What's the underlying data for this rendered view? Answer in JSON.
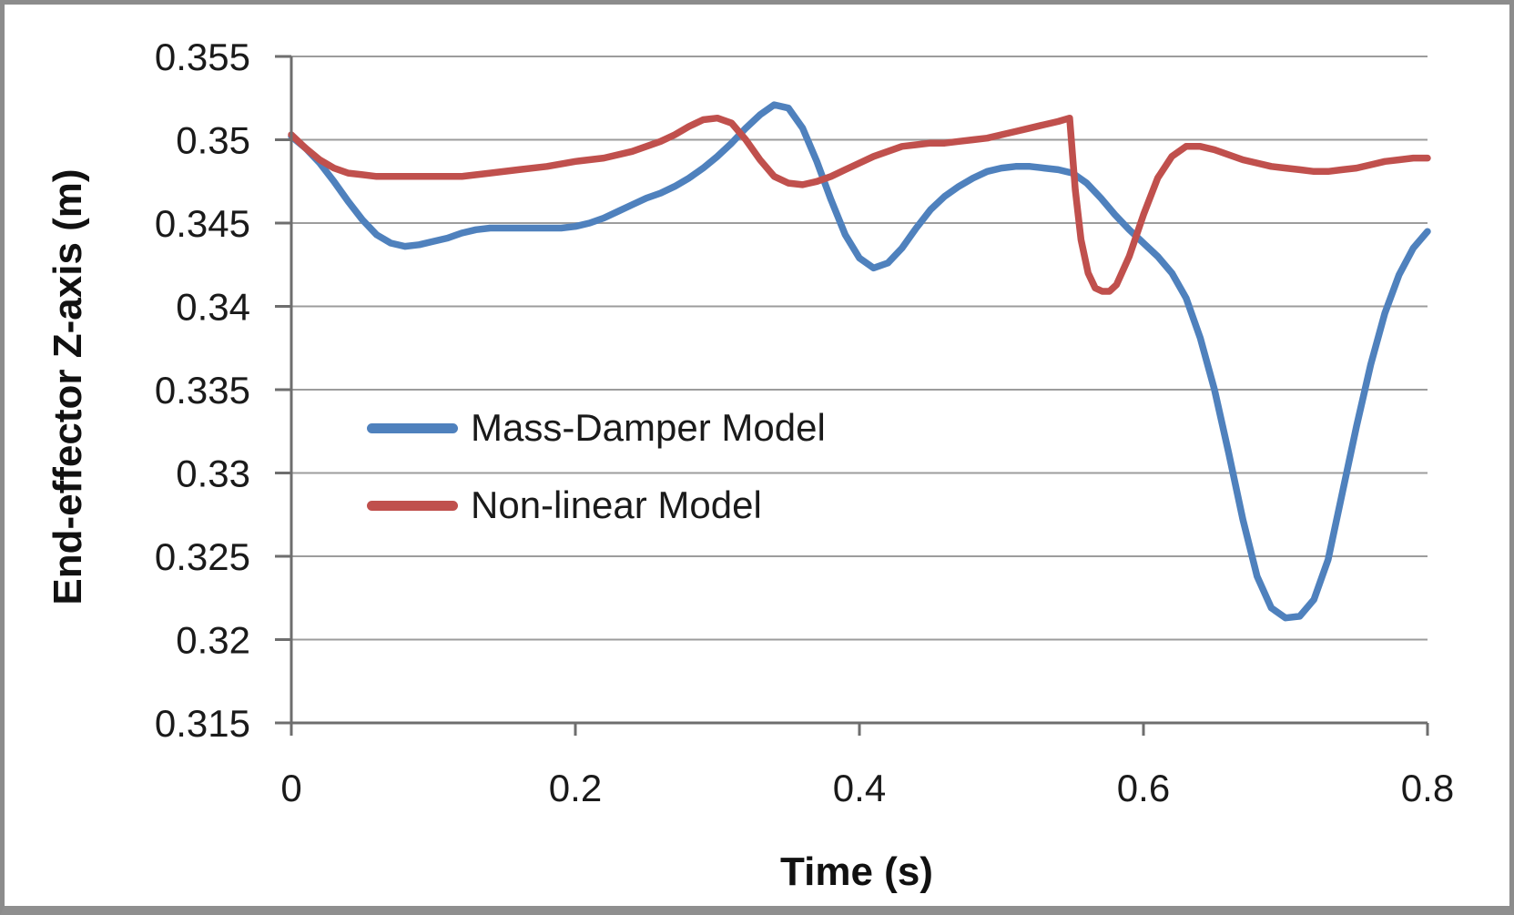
{
  "figure": {
    "background": "#ffffff",
    "border_color": "#8c8c8c"
  },
  "chart_data": {
    "type": "line",
    "title": "",
    "xlabel": "Time (s)",
    "ylabel": "End-effector Z-axis (m)",
    "xlim": [
      0,
      0.8
    ],
    "ylim": [
      0.315,
      0.355
    ],
    "grid": "horizontal",
    "legend_position": "inside-left-middle",
    "colors": {
      "gridline": "#9c9c9c",
      "axis": "#6e6e6e",
      "tick": "#6e6e6e",
      "text": "#1a1a1a"
    },
    "x_ticks": [
      {
        "value": 0,
        "label": "0"
      },
      {
        "value": 0.2,
        "label": "0.2"
      },
      {
        "value": 0.4,
        "label": "0.4"
      },
      {
        "value": 0.6,
        "label": "0.6"
      },
      {
        "value": 0.8,
        "label": "0.8"
      }
    ],
    "y_ticks": [
      {
        "value": 0.355,
        "label": "0.355"
      },
      {
        "value": 0.35,
        "label": "0.35"
      },
      {
        "value": 0.345,
        "label": "0.345"
      },
      {
        "value": 0.34,
        "label": "0.34"
      },
      {
        "value": 0.335,
        "label": "0.335"
      },
      {
        "value": 0.33,
        "label": "0.33"
      },
      {
        "value": 0.325,
        "label": "0.325"
      },
      {
        "value": 0.32,
        "label": "0.32"
      },
      {
        "value": 0.315,
        "label": "0.315"
      }
    ],
    "series": [
      {
        "name": "Mass-Damper Model",
        "color": "#4f81bd",
        "points": [
          [
            0.0,
            0.3502
          ],
          [
            0.01,
            0.3495
          ],
          [
            0.02,
            0.3486
          ],
          [
            0.03,
            0.3475
          ],
          [
            0.04,
            0.3463
          ],
          [
            0.05,
            0.3452
          ],
          [
            0.06,
            0.3443
          ],
          [
            0.07,
            0.3438
          ],
          [
            0.08,
            0.3436
          ],
          [
            0.09,
            0.3437
          ],
          [
            0.1,
            0.3439
          ],
          [
            0.11,
            0.3441
          ],
          [
            0.12,
            0.3444
          ],
          [
            0.13,
            0.3446
          ],
          [
            0.14,
            0.3447
          ],
          [
            0.15,
            0.3447
          ],
          [
            0.16,
            0.3447
          ],
          [
            0.17,
            0.3447
          ],
          [
            0.18,
            0.3447
          ],
          [
            0.19,
            0.3447
          ],
          [
            0.2,
            0.3448
          ],
          [
            0.21,
            0.345
          ],
          [
            0.22,
            0.3453
          ],
          [
            0.23,
            0.3457
          ],
          [
            0.24,
            0.3461
          ],
          [
            0.25,
            0.3465
          ],
          [
            0.26,
            0.3468
          ],
          [
            0.27,
            0.3472
          ],
          [
            0.28,
            0.3477
          ],
          [
            0.29,
            0.3483
          ],
          [
            0.3,
            0.349
          ],
          [
            0.31,
            0.3498
          ],
          [
            0.32,
            0.3507
          ],
          [
            0.33,
            0.3515
          ],
          [
            0.34,
            0.3521
          ],
          [
            0.35,
            0.3519
          ],
          [
            0.36,
            0.3507
          ],
          [
            0.37,
            0.3487
          ],
          [
            0.38,
            0.3464
          ],
          [
            0.39,
            0.3443
          ],
          [
            0.4,
            0.3429
          ],
          [
            0.41,
            0.3423
          ],
          [
            0.42,
            0.3426
          ],
          [
            0.43,
            0.3435
          ],
          [
            0.44,
            0.3447
          ],
          [
            0.45,
            0.3458
          ],
          [
            0.46,
            0.3466
          ],
          [
            0.47,
            0.3472
          ],
          [
            0.48,
            0.3477
          ],
          [
            0.49,
            0.3481
          ],
          [
            0.5,
            0.3483
          ],
          [
            0.51,
            0.3484
          ],
          [
            0.52,
            0.3484
          ],
          [
            0.53,
            0.3483
          ],
          [
            0.54,
            0.3482
          ],
          [
            0.55,
            0.348
          ],
          [
            0.56,
            0.3474
          ],
          [
            0.57,
            0.3465
          ],
          [
            0.58,
            0.3455
          ],
          [
            0.59,
            0.3446
          ],
          [
            0.6,
            0.3438
          ],
          [
            0.61,
            0.343
          ],
          [
            0.62,
            0.342
          ],
          [
            0.63,
            0.3405
          ],
          [
            0.64,
            0.3381
          ],
          [
            0.65,
            0.335
          ],
          [
            0.66,
            0.3312
          ],
          [
            0.67,
            0.3272
          ],
          [
            0.68,
            0.3238
          ],
          [
            0.69,
            0.3219
          ],
          [
            0.7,
            0.3213
          ],
          [
            0.71,
            0.3214
          ],
          [
            0.72,
            0.3224
          ],
          [
            0.73,
            0.3248
          ],
          [
            0.74,
            0.3288
          ],
          [
            0.75,
            0.3328
          ],
          [
            0.76,
            0.3365
          ],
          [
            0.77,
            0.3396
          ],
          [
            0.78,
            0.3419
          ],
          [
            0.79,
            0.3435
          ],
          [
            0.8,
            0.3445
          ]
        ]
      },
      {
        "name": "Non-linear Model",
        "color": "#c0504d",
        "points": [
          [
            0.0,
            0.3503
          ],
          [
            0.01,
            0.3495
          ],
          [
            0.02,
            0.3488
          ],
          [
            0.03,
            0.3483
          ],
          [
            0.04,
            0.348
          ],
          [
            0.05,
            0.3479
          ],
          [
            0.06,
            0.3478
          ],
          [
            0.08,
            0.3478
          ],
          [
            0.1,
            0.3478
          ],
          [
            0.12,
            0.3478
          ],
          [
            0.14,
            0.348
          ],
          [
            0.16,
            0.3482
          ],
          [
            0.18,
            0.3484
          ],
          [
            0.2,
            0.3487
          ],
          [
            0.22,
            0.3489
          ],
          [
            0.24,
            0.3493
          ],
          [
            0.26,
            0.3499
          ],
          [
            0.27,
            0.3503
          ],
          [
            0.28,
            0.3508
          ],
          [
            0.29,
            0.3512
          ],
          [
            0.3,
            0.3513
          ],
          [
            0.31,
            0.351
          ],
          [
            0.32,
            0.35
          ],
          [
            0.33,
            0.3488
          ],
          [
            0.34,
            0.3478
          ],
          [
            0.35,
            0.3474
          ],
          [
            0.36,
            0.3473
          ],
          [
            0.37,
            0.3475
          ],
          [
            0.38,
            0.3478
          ],
          [
            0.39,
            0.3482
          ],
          [
            0.4,
            0.3486
          ],
          [
            0.41,
            0.349
          ],
          [
            0.42,
            0.3493
          ],
          [
            0.43,
            0.3496
          ],
          [
            0.44,
            0.3497
          ],
          [
            0.45,
            0.3498
          ],
          [
            0.46,
            0.3498
          ],
          [
            0.47,
            0.3499
          ],
          [
            0.48,
            0.35
          ],
          [
            0.49,
            0.3501
          ],
          [
            0.5,
            0.3503
          ],
          [
            0.51,
            0.3505
          ],
          [
            0.52,
            0.3507
          ],
          [
            0.53,
            0.3509
          ],
          [
            0.54,
            0.3511
          ],
          [
            0.548,
            0.3513
          ],
          [
            0.552,
            0.347
          ],
          [
            0.556,
            0.344
          ],
          [
            0.561,
            0.342
          ],
          [
            0.566,
            0.3411
          ],
          [
            0.571,
            0.3409
          ],
          [
            0.576,
            0.3409
          ],
          [
            0.581,
            0.3413
          ],
          [
            0.59,
            0.343
          ],
          [
            0.6,
            0.3455
          ],
          [
            0.61,
            0.3477
          ],
          [
            0.62,
            0.349
          ],
          [
            0.63,
            0.3496
          ],
          [
            0.64,
            0.3496
          ],
          [
            0.65,
            0.3494
          ],
          [
            0.66,
            0.3491
          ],
          [
            0.67,
            0.3488
          ],
          [
            0.68,
            0.3486
          ],
          [
            0.69,
            0.3484
          ],
          [
            0.7,
            0.3483
          ],
          [
            0.71,
            0.3482
          ],
          [
            0.72,
            0.3481
          ],
          [
            0.73,
            0.3481
          ],
          [
            0.74,
            0.3482
          ],
          [
            0.75,
            0.3483
          ],
          [
            0.76,
            0.3485
          ],
          [
            0.77,
            0.3487
          ],
          [
            0.78,
            0.3488
          ],
          [
            0.79,
            0.3489
          ],
          [
            0.8,
            0.3489
          ]
        ]
      }
    ]
  }
}
